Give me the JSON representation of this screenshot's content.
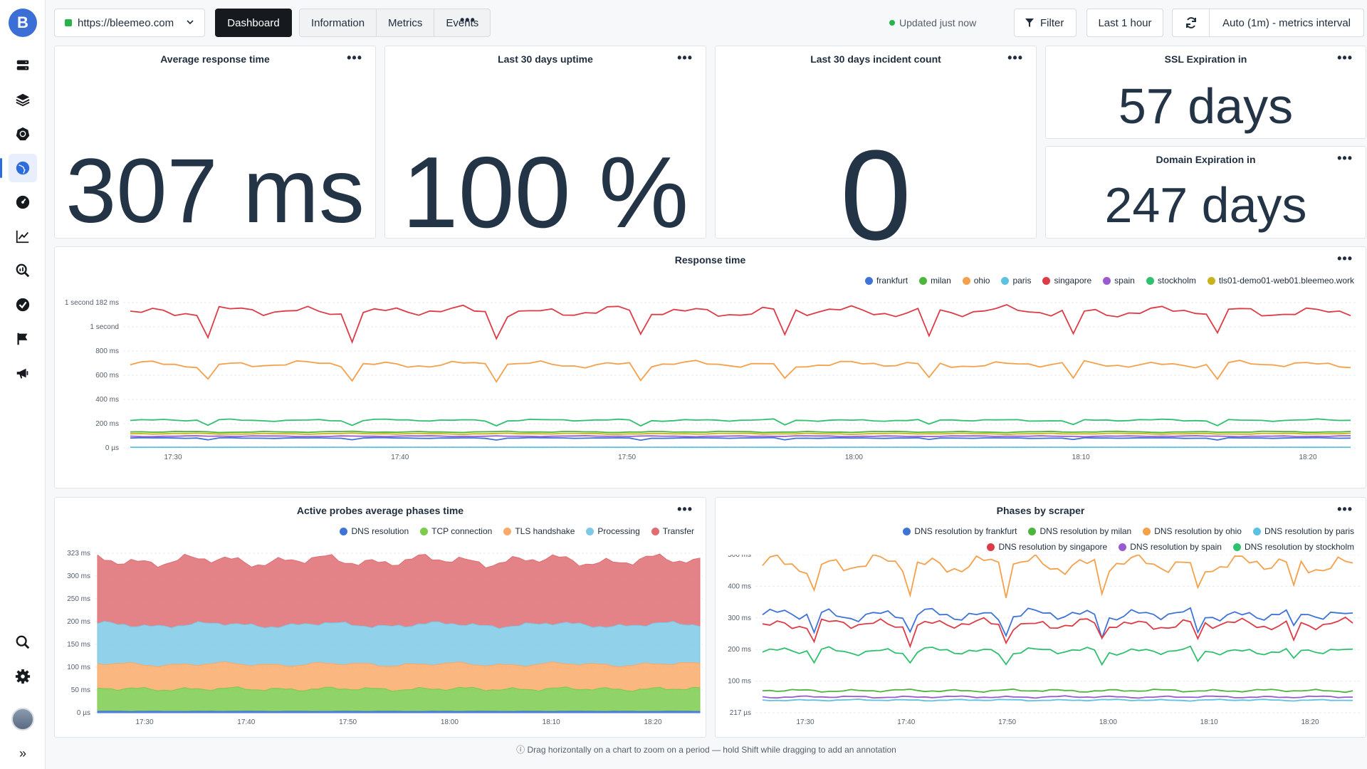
{
  "topbar": {
    "site": "https://bleemeo.com",
    "dashboard_label": "Dashboard",
    "tabs": [
      "Information",
      "Metrics",
      "Events"
    ],
    "more": "•••",
    "status": "Updated just now",
    "filter_label": "Filter",
    "time_range": "Last 1 hour",
    "interval": "Auto (1m) - metrics interval"
  },
  "sidebar": {
    "logo": "B",
    "icons": [
      "servers-icon",
      "layers-icon",
      "kubernetes-icon",
      "globe-icon",
      "dashboard-gauge-icon",
      "chart-line-icon",
      "search-chart-icon",
      "check-circle-icon",
      "flag-icon",
      "megaphone-icon"
    ],
    "bottom_icons": [
      "search-icon",
      "gear-icon",
      "avatar",
      "expand-icon"
    ],
    "expand": "»"
  },
  "stats": {
    "avg_response": {
      "title": "Average response time",
      "value": "307 ms"
    },
    "uptime": {
      "title": "Last 30 days uptime",
      "value": "100 %"
    },
    "incidents": {
      "title": "Last 30 days incident count",
      "value": "0"
    },
    "ssl": {
      "title": "SSL Expiration in",
      "value": "57 days"
    },
    "domain": {
      "title": "Domain Expiration in",
      "value": "247 days"
    }
  },
  "panel_menu": "•••",
  "footer_note": "Drag horizontally on a chart to zoom on a period — hold Shift while dragging to add an annotation",
  "colors": {
    "frankfurt": "#3f73d6",
    "milan": "#4db53c",
    "ohio": "#f5a04a",
    "paris": "#5dc1e0",
    "singapore": "#dd3b45",
    "spain": "#9a5bd0",
    "stockholm": "#2fc070",
    "tls": "#c9b21b"
  },
  "chart_data": [
    {
      "type": "line",
      "title": "Response time",
      "y_tick_labels": [
        "1 second 182 ms",
        "1 second",
        "800 ms",
        "600 ms",
        "400 ms",
        "200 ms",
        "0 µs"
      ],
      "x_tick_labels": [
        "17:30",
        "17:40",
        "17:50",
        "18:00",
        "18:10",
        "18:20"
      ],
      "series": [
        {
          "name": "frankfurt",
          "color": "#3f73d6",
          "value_ms": 80
        },
        {
          "name": "milan",
          "color": "#4db53c",
          "value_ms": 130
        },
        {
          "name": "ohio",
          "color": "#f5a04a",
          "value_ms": 680
        },
        {
          "name": "paris",
          "color": "#5dc1e0",
          "value_ms": 5
        },
        {
          "name": "singapore",
          "color": "#dd3b45",
          "value_ms": 1110
        },
        {
          "name": "spain",
          "color": "#9a5bd0",
          "value_ms": 95
        },
        {
          "name": "stockholm",
          "color": "#2fc070",
          "value_ms": 225
        },
        {
          "name": "tls01-demo01-web01.bleemeo.work",
          "color": "#c9b21b",
          "value_ms": 115
        }
      ],
      "ylim": [
        0,
        1182
      ]
    },
    {
      "type": "area",
      "title": "Active probes average phases time",
      "y_tick_labels": [
        "323 ms",
        "300 ms",
        "250 ms",
        "200 ms",
        "150 ms",
        "100 ms",
        "50 ms",
        "0 µs"
      ],
      "x_tick_labels": [
        "17:30",
        "17:40",
        "17:50",
        "18:00",
        "18:10",
        "18:20"
      ],
      "series": [
        {
          "name": "DNS resolution",
          "color": "#3f73d6",
          "value_ms": 3
        },
        {
          "name": "TCP connection",
          "color": "#7ccb4d",
          "value_ms": 45
        },
        {
          "name": "TLS handshake",
          "color": "#f9aa6a",
          "value_ms": 50
        },
        {
          "name": "Processing",
          "color": "#7ec9e6",
          "value_ms": 80
        },
        {
          "name": "Transfer",
          "color": "#df6d72",
          "value_ms": 130
        }
      ],
      "ylim": [
        0,
        323
      ]
    },
    {
      "type": "line",
      "title": "Phases by scraper",
      "y_tick_labels": [
        "500 ms",
        "400 ms",
        "300 ms",
        "200 ms",
        "100 ms",
        "217 µs"
      ],
      "x_tick_labels": [
        "17:30",
        "17:40",
        "17:50",
        "18:00",
        "18:10",
        "18:20"
      ],
      "series": [
        {
          "name": "DNS resolution by frankfurt",
          "color": "#3f73d6",
          "value_ms": 310
        },
        {
          "name": "DNS resolution by milan",
          "color": "#4db53c",
          "value_ms": 70
        },
        {
          "name": "DNS resolution by ohio",
          "color": "#f5a04a",
          "value_ms": 470
        },
        {
          "name": "DNS resolution by paris",
          "color": "#5dc1e0",
          "value_ms": 40
        },
        {
          "name": "DNS resolution by singapore",
          "color": "#dd3b45",
          "value_ms": 280
        },
        {
          "name": "DNS resolution by spain",
          "color": "#9a5bd0",
          "value_ms": 50
        },
        {
          "name": "DNS resolution by stockholm",
          "color": "#2fc070",
          "value_ms": 195
        }
      ],
      "ylim": [
        0,
        500
      ]
    }
  ]
}
